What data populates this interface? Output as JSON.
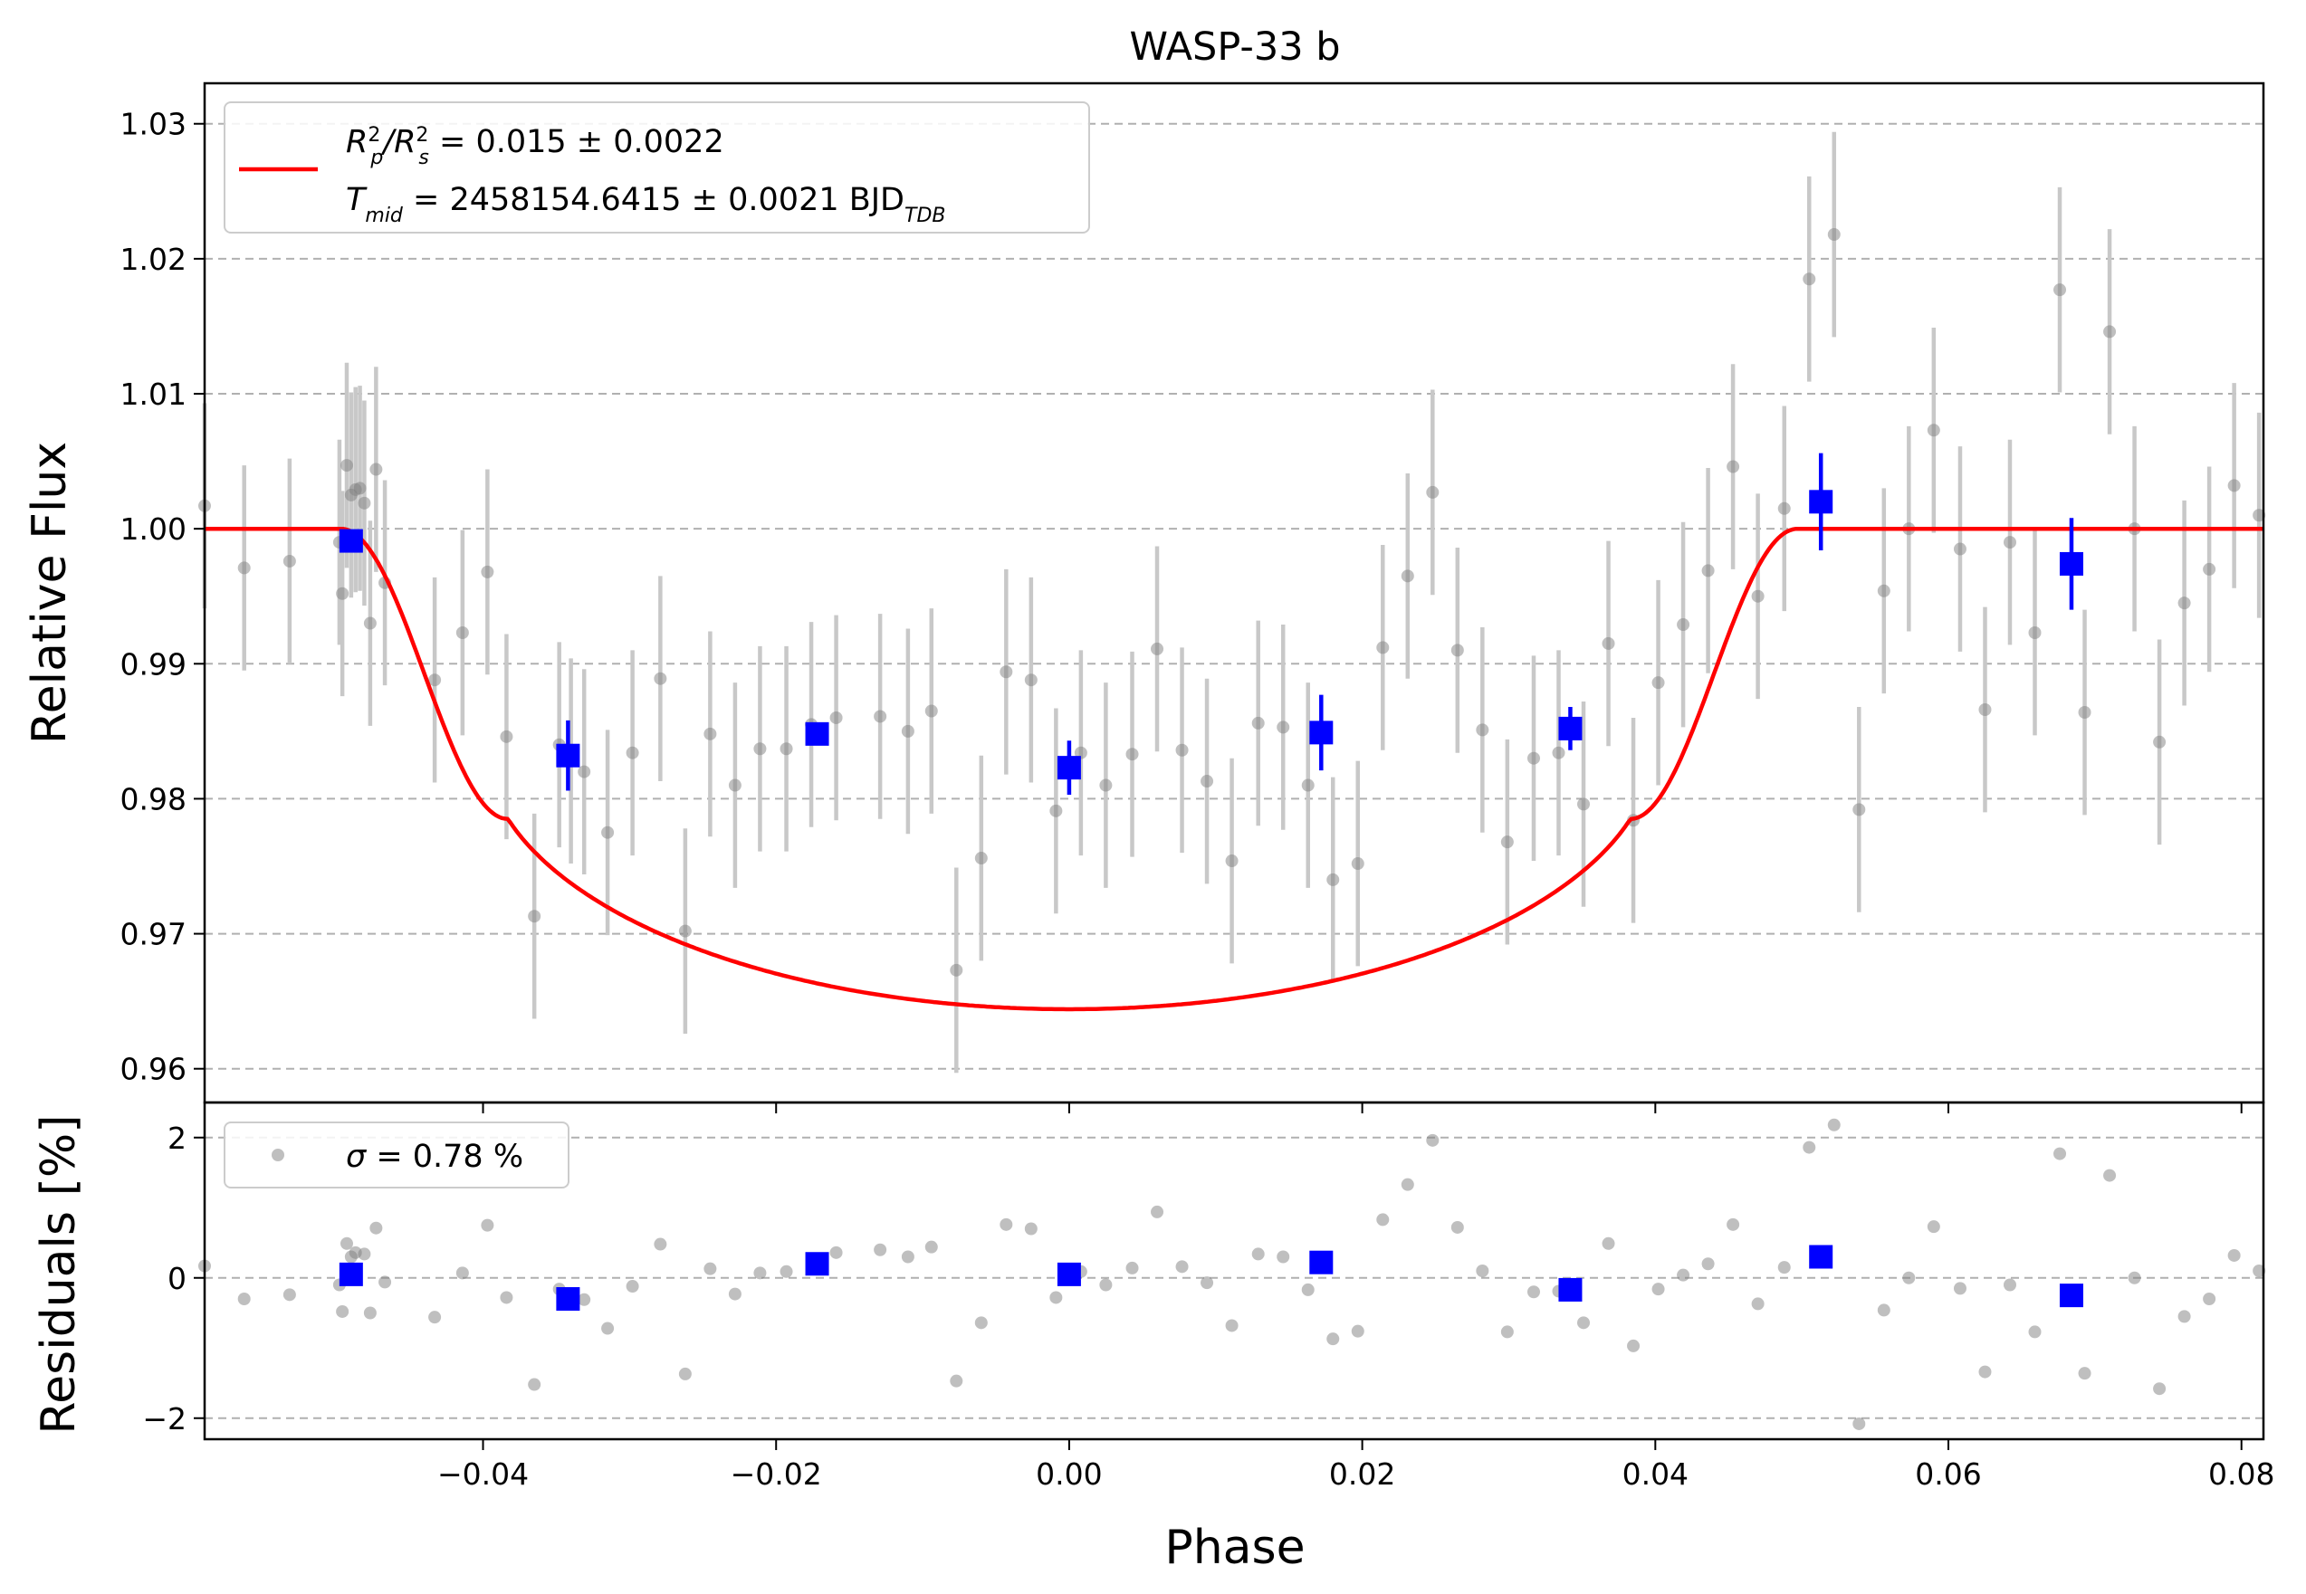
{
  "chart_data": {
    "type": "scatter",
    "title": "WASP-33 b",
    "xlabel": "Phase",
    "xlim": [
      -0.059,
      0.0815
    ],
    "x_ticks": [
      -0.04,
      -0.02,
      0.0,
      0.02,
      0.04,
      0.06,
      0.08
    ],
    "x_tick_labels": [
      "−0.04",
      "−0.02",
      "0.00",
      "0.02",
      "0.04",
      "0.06",
      "0.08"
    ],
    "panels": {
      "flux": {
        "ylabel": "Relative Flux",
        "ylim": [
          0.9575,
          1.033
        ],
        "y_ticks": [
          0.96,
          0.97,
          0.98,
          0.99,
          1.0,
          1.01,
          1.02,
          1.03
        ],
        "y_tick_labels": [
          "0.96",
          "0.97",
          "0.98",
          "0.99",
          "1.00",
          "1.01",
          "1.02",
          "1.03"
        ],
        "grid": true,
        "legend_placement": "upper-left",
        "legend": {
          "line1_a": "R",
          "line1_a_sup": "2",
          "line1_a_sub": "p",
          "line1_b": "/R",
          "line1_b_sup": "2",
          "line1_b_sub": "s",
          "line1_rest": " = 0.015 ± 0.0022",
          "line2_a": "T",
          "line2_a_sub": "mid",
          "line2_rest": " = 2458154.6415 ± 0.0021 BJD",
          "line2_sub": "TDB"
        }
      },
      "residuals": {
        "ylabel": "Residuals [%]",
        "ylim": [
          -2.3,
          2.5
        ],
        "y_ticks": [
          -2,
          0,
          2
        ],
        "y_tick_labels": [
          "−2",
          "0",
          "2"
        ],
        "grid": true,
        "legend_placement": "upper-left",
        "legend": {
          "sigma_symbol": "σ",
          "sigma_rest": " = 0.78 %"
        }
      }
    },
    "model": {
      "color": "#ff0000",
      "baseline": 1.0,
      "depth": 0.0182,
      "t1": -0.0497,
      "t2": -0.0383,
      "t3": 0.0383,
      "t4": 0.0497,
      "limb_u": 0.55
    },
    "raw_series": {
      "color": "#808080",
      "err_color": "#c8c8c8",
      "flux_error": 0.0076,
      "points": [
        [
          -0.059,
          1.0017
        ],
        [
          -0.0563,
          0.9971
        ],
        [
          -0.0532,
          0.9976
        ],
        [
          -0.0498,
          0.999
        ],
        [
          -0.0496,
          0.9952
        ],
        [
          -0.0493,
          1.0047
        ],
        [
          -0.049,
          1.0025
        ],
        [
          -0.0487,
          1.0029
        ],
        [
          -0.0484,
          1.003
        ],
        [
          -0.0481,
          1.0019
        ],
        [
          -0.0477,
          0.993
        ],
        [
          -0.0473,
          1.0044
        ],
        [
          -0.0467,
          0.996
        ],
        [
          -0.0433,
          0.9888
        ],
        [
          -0.0414,
          0.9923
        ],
        [
          -0.0397,
          0.9968
        ],
        [
          -0.0384,
          0.9846
        ],
        [
          -0.0365,
          0.9713
        ],
        [
          -0.0348,
          0.984
        ],
        [
          -0.034,
          0.9828
        ],
        [
          -0.0331,
          0.982
        ],
        [
          -0.0315,
          0.9775
        ],
        [
          -0.0298,
          0.9834
        ],
        [
          -0.0279,
          0.9889
        ],
        [
          -0.0262,
          0.9702
        ],
        [
          -0.0245,
          0.9848
        ],
        [
          -0.0228,
          0.981
        ],
        [
          -0.0211,
          0.9837
        ],
        [
          -0.0193,
          0.9837
        ],
        [
          -0.0176,
          0.9855
        ],
        [
          -0.0159,
          0.986
        ],
        [
          -0.0129,
          0.9861
        ],
        [
          -0.011,
          0.985
        ],
        [
          -0.0094,
          0.9865
        ],
        [
          -0.0077,
          0.9673
        ],
        [
          -0.006,
          0.9756
        ],
        [
          -0.0043,
          0.9894
        ],
        [
          -0.0026,
          0.9888
        ],
        [
          -0.0009,
          0.9791
        ],
        [
          0.0008,
          0.9834
        ],
        [
          0.0025,
          0.981
        ],
        [
          0.0043,
          0.9833
        ],
        [
          0.006,
          0.9911
        ],
        [
          0.0077,
          0.9836
        ],
        [
          0.0094,
          0.9813
        ],
        [
          0.0111,
          0.9754
        ],
        [
          0.0129,
          0.9856
        ],
        [
          0.0146,
          0.9853
        ],
        [
          0.0163,
          0.981
        ],
        [
          0.018,
          0.974
        ],
        [
          0.0197,
          0.9752
        ],
        [
          0.0214,
          0.9912
        ],
        [
          0.0231,
          0.9965
        ],
        [
          0.0248,
          1.0027
        ],
        [
          0.0265,
          0.991
        ],
        [
          0.0282,
          0.9851
        ],
        [
          0.0299,
          0.9768
        ],
        [
          0.0317,
          0.983
        ],
        [
          0.0334,
          0.9834
        ],
        [
          0.0351,
          0.9796
        ],
        [
          0.0368,
          0.9915
        ],
        [
          0.0385,
          0.9784
        ],
        [
          0.0402,
          0.9886
        ],
        [
          0.0419,
          0.9929
        ],
        [
          0.0436,
          0.9969
        ],
        [
          0.0453,
          1.0046
        ],
        [
          0.047,
          0.995
        ],
        [
          0.0488,
          1.0015
        ],
        [
          0.0505,
          1.0185
        ],
        [
          0.0522,
          1.0218
        ],
        [
          0.0539,
          0.9792
        ],
        [
          0.0556,
          0.9954
        ],
        [
          0.0573,
          1.0
        ],
        [
          0.059,
          1.0073
        ],
        [
          0.0608,
          0.9985
        ],
        [
          0.0625,
          0.9866
        ],
        [
          0.0642,
          0.999
        ],
        [
          0.0659,
          0.9923
        ],
        [
          0.0676,
          1.0177
        ],
        [
          0.0693,
          0.9864
        ],
        [
          0.071,
          1.0146
        ],
        [
          0.0727,
          1.0
        ],
        [
          0.0744,
          0.9842
        ],
        [
          0.0761,
          0.9945
        ],
        [
          0.0778,
          0.997
        ],
        [
          0.0795,
          1.0032
        ],
        [
          0.0812,
          1.001
        ]
      ]
    },
    "binned_series": {
      "color": "#0000ff",
      "points": [
        [
          -0.049,
          0.9991,
          0.0008,
          0.05
        ],
        [
          -0.0342,
          0.9832,
          0.0026,
          -0.3
        ],
        [
          -0.0172,
          0.9848,
          0.0006,
          0.2
        ],
        [
          0.0,
          0.9823,
          0.002,
          0.05
        ],
        [
          0.0172,
          0.9849,
          0.0028,
          0.22
        ],
        [
          0.0342,
          0.9852,
          0.0016,
          -0.17
        ],
        [
          0.0513,
          1.002,
          0.0036,
          0.3
        ],
        [
          0.0684,
          0.9974,
          0.0034,
          -0.25
        ]
      ]
    },
    "residual_series": {
      "color": "#808080",
      "points": [
        [
          -0.059,
          0.17
        ],
        [
          -0.0563,
          -0.3
        ],
        [
          -0.0532,
          -0.24
        ],
        [
          -0.0498,
          -0.1
        ],
        [
          -0.0496,
          -0.48
        ],
        [
          -0.0493,
          0.49
        ],
        [
          -0.049,
          0.3
        ],
        [
          -0.0487,
          0.36
        ],
        [
          -0.0481,
          0.34
        ],
        [
          -0.0477,
          -0.5
        ],
        [
          -0.0473,
          0.71
        ],
        [
          -0.0467,
          -0.06
        ],
        [
          -0.0433,
          -0.56
        ],
        [
          -0.0414,
          0.07
        ],
        [
          -0.0397,
          0.75
        ],
        [
          -0.0384,
          -0.28
        ],
        [
          -0.0365,
          -1.52
        ],
        [
          -0.0348,
          -0.16
        ],
        [
          -0.034,
          -0.3
        ],
        [
          -0.0331,
          -0.31
        ],
        [
          -0.0315,
          -0.72
        ],
        [
          -0.0298,
          -0.12
        ],
        [
          -0.0279,
          0.48
        ],
        [
          -0.0262,
          -1.37
        ],
        [
          -0.0245,
          0.13
        ],
        [
          -0.0228,
          -0.23
        ],
        [
          -0.0211,
          0.07
        ],
        [
          -0.0193,
          0.09
        ],
        [
          -0.0159,
          0.36
        ],
        [
          -0.0129,
          0.4
        ],
        [
          -0.011,
          0.3
        ],
        [
          -0.0094,
          0.44
        ],
        [
          -0.0077,
          -1.47
        ],
        [
          -0.006,
          -0.64
        ],
        [
          -0.0043,
          0.76
        ],
        [
          -0.0026,
          0.7
        ],
        [
          -0.0009,
          -0.28
        ],
        [
          0.0008,
          0.09
        ],
        [
          0.0025,
          -0.1
        ],
        [
          0.0043,
          0.14
        ],
        [
          0.006,
          0.94
        ],
        [
          0.0077,
          0.16
        ],
        [
          0.0094,
          -0.07
        ],
        [
          0.0111,
          -0.68
        ],
        [
          0.0129,
          0.34
        ],
        [
          0.0146,
          0.3
        ],
        [
          0.0163,
          -0.17
        ],
        [
          0.018,
          -0.87
        ],
        [
          0.0197,
          -0.76
        ],
        [
          0.0214,
          0.83
        ],
        [
          0.0231,
          1.33
        ],
        [
          0.0248,
          1.96
        ],
        [
          0.0265,
          0.72
        ],
        [
          0.0282,
          0.1
        ],
        [
          0.0299,
          -0.77
        ],
        [
          0.0317,
          -0.2
        ],
        [
          0.0334,
          -0.19
        ],
        [
          0.0351,
          -0.64
        ],
        [
          0.0368,
          0.49
        ],
        [
          0.0385,
          -0.97
        ],
        [
          0.0402,
          -0.16
        ],
        [
          0.0419,
          0.04
        ],
        [
          0.0436,
          0.2
        ],
        [
          0.0453,
          0.76
        ],
        [
          0.047,
          -0.37
        ],
        [
          0.0488,
          0.15
        ],
        [
          0.0505,
          1.86
        ],
        [
          0.0522,
          2.18
        ],
        [
          0.0539,
          -2.08
        ],
        [
          0.0556,
          -0.46
        ],
        [
          0.0573,
          0.0
        ],
        [
          0.059,
          0.73
        ],
        [
          0.0608,
          -0.15
        ],
        [
          0.0625,
          -1.34
        ],
        [
          0.0642,
          -0.1
        ],
        [
          0.0659,
          -0.77
        ],
        [
          0.0676,
          1.77
        ],
        [
          0.0693,
          -1.36
        ],
        [
          0.071,
          1.46
        ],
        [
          0.0727,
          0.0
        ],
        [
          0.0744,
          -1.58
        ],
        [
          0.0761,
          -0.55
        ],
        [
          0.0778,
          -0.3
        ],
        [
          0.0795,
          0.32
        ],
        [
          0.0812,
          0.1
        ]
      ]
    }
  }
}
